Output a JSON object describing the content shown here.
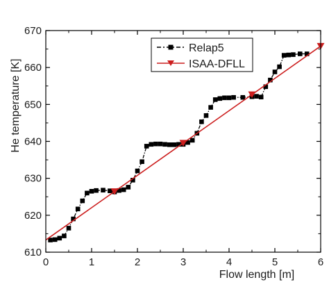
{
  "chart_data": {
    "type": "line",
    "xlabel": "Flow length [m]",
    "ylabel": "He temperature [K]",
    "xlim": [
      0,
      6
    ],
    "ylim": [
      610,
      670
    ],
    "x_ticks": [
      0,
      1,
      2,
      3,
      4,
      5,
      6
    ],
    "y_ticks": [
      610,
      620,
      630,
      640,
      650,
      660,
      670
    ],
    "x_tick_labels": [
      "0",
      "1",
      "2",
      "3",
      "4",
      "5",
      "6"
    ],
    "y_tick_labels": [
      "610",
      "620",
      "630",
      "640",
      "650",
      "660",
      "670"
    ],
    "grid": false,
    "legend_position": "top-right",
    "series": [
      {
        "name": "Relap5",
        "color": "#000000",
        "marker": "square",
        "line_style": "dash-dot",
        "x": [
          0.1,
          0.2,
          0.3,
          0.4,
          0.5,
          0.6,
          0.7,
          0.8,
          0.9,
          1.0,
          1.1,
          1.25,
          1.4,
          1.5,
          1.6,
          1.7,
          1.8,
          1.9,
          2.0,
          2.1,
          2.2,
          2.3,
          2.4,
          2.5,
          2.6,
          2.7,
          2.8,
          2.9,
          3.0,
          3.1,
          3.2,
          3.3,
          3.4,
          3.5,
          3.6,
          3.7,
          3.8,
          3.9,
          4.0,
          4.1,
          4.3,
          4.5,
          4.6,
          4.7,
          4.8,
          4.9,
          5.0,
          5.1,
          5.2,
          5.3,
          5.4,
          5.55,
          5.7
        ],
        "y": [
          613.3,
          613.4,
          613.8,
          614.4,
          616.5,
          619.0,
          621.7,
          623.9,
          626.0,
          626.5,
          626.7,
          626.8,
          626.6,
          626.3,
          626.7,
          626.9,
          627.6,
          629.5,
          632.0,
          634.5,
          638.7,
          639.2,
          639.3,
          639.3,
          639.2,
          639.1,
          639.1,
          639.2,
          639.2,
          639.7,
          640.3,
          642.2,
          645.3,
          647.0,
          649.2,
          651.3,
          651.6,
          651.8,
          651.8,
          651.9,
          651.9,
          652.1,
          652.2,
          652.0,
          654.8,
          656.6,
          658.8,
          660.2,
          663.3,
          663.4,
          663.5,
          663.7,
          663.7
        ]
      },
      {
        "name": "ISAA-DFLL",
        "color": "#cc1e1e",
        "marker": "triangle-down",
        "line_style": "solid",
        "x": [
          0,
          6
        ],
        "y": [
          613.3,
          665.8
        ],
        "marker_x": [
          1.5,
          3.0,
          4.5,
          6.0
        ]
      }
    ]
  }
}
